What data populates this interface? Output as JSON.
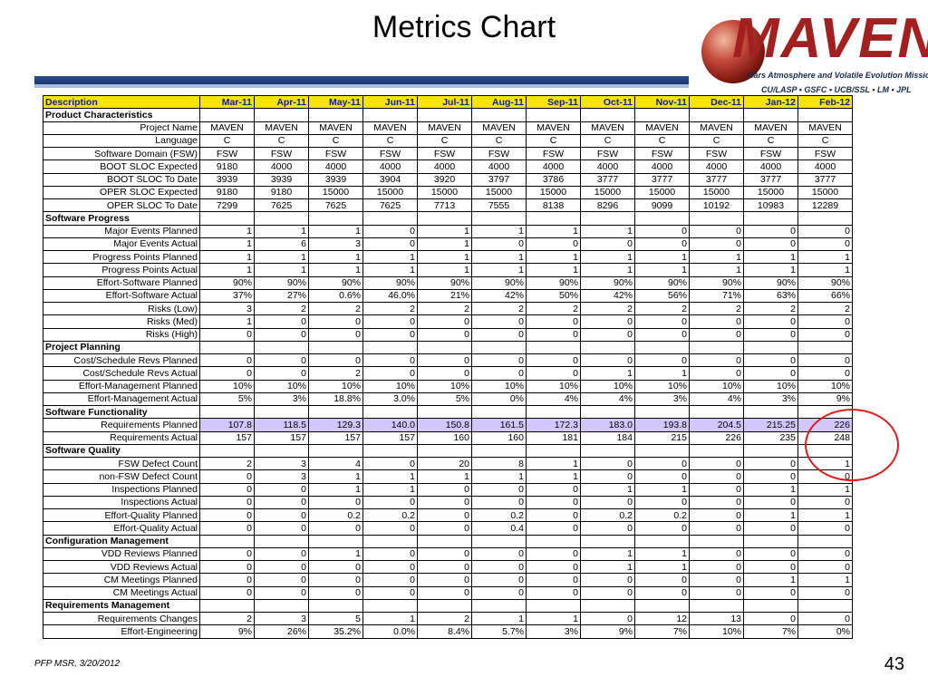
{
  "title": "Metrics Chart",
  "logo": {
    "name": "MAVEN",
    "subtitle": "Mars Atmosphere and Volatile Evolution Mission",
    "partners": "CU/LASP • GSFC • UCB/SSL • LM • JPL"
  },
  "footer": "PFP MSR, 3/20/2012",
  "page_number": "43",
  "colors": {
    "header_bg": "#f6e500",
    "header_text": "#0a1a9e",
    "highlight_row": "#d3c6fb",
    "circle": "#e11a1a"
  },
  "table": {
    "description_header": "Description",
    "months": [
      "Mar-11",
      "Apr-11",
      "May-11",
      "Jun-11",
      "Jul-11",
      "Aug-11",
      "Sep-11",
      "Oct-11",
      "Nov-11",
      "Dec-11",
      "Jan-12",
      "Feb-12"
    ],
    "sections": [
      {
        "name": "Product Characteristics",
        "align": "center",
        "rows": [
          {
            "label": "Project Name",
            "values": [
              "MAVEN",
              "MAVEN",
              "MAVEN",
              "MAVEN",
              "MAVEN",
              "MAVEN",
              "MAVEN",
              "MAVEN",
              "MAVEN",
              "MAVEN",
              "MAVEN",
              "MAVEN"
            ]
          },
          {
            "label": "Language",
            "values": [
              "C",
              "C",
              "C",
              "C",
              "C",
              "C",
              "C",
              "C",
              "C",
              "C",
              "C",
              "C"
            ]
          },
          {
            "label": "Software Domain (FSW)",
            "values": [
              "FSW",
              "FSW",
              "FSW",
              "FSW",
              "FSW",
              "FSW",
              "FSW",
              "FSW",
              "FSW",
              "FSW",
              "FSW",
              "FSW"
            ]
          },
          {
            "label": "BOOT SLOC Expected",
            "values": [
              "9180",
              "4000",
              "4000",
              "4000",
              "4000",
              "4000",
              "4000",
              "4000",
              "4000",
              "4000",
              "4000",
              "4000"
            ]
          },
          {
            "label": "BOOT SLOC To Date",
            "values": [
              "3939",
              "3939",
              "3939",
              "3904",
              "3920",
              "3797",
              "3786",
              "3777",
              "3777",
              "3777",
              "3777",
              "3777"
            ]
          },
          {
            "label": "OPER SLOC Expected",
            "values": [
              "9180",
              "9180",
              "15000",
              "15000",
              "15000",
              "15000",
              "15000",
              "15000",
              "15000",
              "15000",
              "15000",
              "15000"
            ]
          },
          {
            "label": "OPER SLOC To Date",
            "values": [
              "7299",
              "7625",
              "7625",
              "7625",
              "7713",
              "7555",
              "8138",
              "8296",
              "9099",
              "10192",
              "10983",
              "12289"
            ]
          }
        ]
      },
      {
        "name": "Software Progress",
        "align": "right",
        "rows": [
          {
            "label": "Major Events Planned",
            "values": [
              "1",
              "1",
              "1",
              "0",
              "1",
              "1",
              "1",
              "1",
              "0",
              "0",
              "0",
              "0"
            ]
          },
          {
            "label": "Major Events Actual",
            "values": [
              "1",
              "6",
              "3",
              "0",
              "1",
              "0",
              "0",
              "0",
              "0",
              "0",
              "0",
              "0"
            ]
          },
          {
            "label": "Progress Points Planned",
            "values": [
              "1",
              "1",
              "1",
              "1",
              "1",
              "1",
              "1",
              "1",
              "1",
              "1",
              "1",
              "1"
            ]
          },
          {
            "label": "Progress Points Actual",
            "values": [
              "1",
              "1",
              "1",
              "1",
              "1",
              "1",
              "1",
              "1",
              "1",
              "1",
              "1",
              "1"
            ]
          },
          {
            "label": "Effort-Software Planned",
            "values": [
              "90%",
              "90%",
              "90%",
              "90%",
              "90%",
              "90%",
              "90%",
              "90%",
              "90%",
              "90%",
              "90%",
              "90%"
            ]
          },
          {
            "label": "Effort-Software Actual",
            "values": [
              "37%",
              "27%",
              "0.6%",
              "46.0%",
              "21%",
              "42%",
              "50%",
              "42%",
              "56%",
              "71%",
              "63%",
              "66%"
            ]
          },
          {
            "label": "Risks (Low)",
            "values": [
              "3",
              "2",
              "2",
              "2",
              "2",
              "2",
              "2",
              "2",
              "2",
              "2",
              "2",
              "2"
            ]
          },
          {
            "label": "Risks (Med)",
            "values": [
              "1",
              "0",
              "0",
              "0",
              "0",
              "0",
              "0",
              "0",
              "0",
              "0",
              "0",
              "0"
            ]
          },
          {
            "label": "Risks (High)",
            "values": [
              "0",
              "0",
              "0",
              "0",
              "0",
              "0",
              "0",
              "0",
              "0",
              "0",
              "0",
              "0"
            ]
          }
        ]
      },
      {
        "name": "Project Planning",
        "align": "right",
        "rows": [
          {
            "label": "Cost/Schedule Revs Planned",
            "values": [
              "0",
              "0",
              "0",
              "0",
              "0",
              "0",
              "0",
              "0",
              "0",
              "0",
              "0",
              "0"
            ]
          },
          {
            "label": "Cost/Schedule Revs Actual",
            "values": [
              "0",
              "0",
              "2",
              "0",
              "0",
              "0",
              "0",
              "1",
              "1",
              "0",
              "0",
              "0"
            ]
          },
          {
            "label": "Effort-Management Planned",
            "values": [
              "10%",
              "10%",
              "10%",
              "10%",
              "10%",
              "10%",
              "10%",
              "10%",
              "10%",
              "10%",
              "10%",
              "10%"
            ]
          },
          {
            "label": "Effort-Management Actual",
            "values": [
              "5%",
              "3%",
              "18.8%",
              "3.0%",
              "5%",
              "0%",
              "4%",
              "4%",
              "3%",
              "4%",
              "3%",
              "9%"
            ]
          }
        ]
      },
      {
        "name": "Software Functionality",
        "align": "right",
        "rows": [
          {
            "label": "Requirements Planned",
            "values": [
              "107.8",
              "118.5",
              "129.3",
              "140.0",
              "150.8",
              "161.5",
              "172.3",
              "183.0",
              "193.8",
              "204.5",
              "215.25",
              "226"
            ],
            "highlight": true
          },
          {
            "label": "Requirements Actual",
            "values": [
              "157",
              "157",
              "157",
              "157",
              "160",
              "160",
              "181",
              "184",
              "215",
              "226",
              "235",
              "248"
            ]
          }
        ]
      },
      {
        "name": "Software Quality",
        "align": "right",
        "rows": [
          {
            "label": "FSW Defect Count",
            "values": [
              "2",
              "3",
              "4",
              "0",
              "20",
              "8",
              "1",
              "0",
              "0",
              "0",
              "0",
              "1"
            ]
          },
          {
            "label": "non-FSW Defect Count",
            "values": [
              "0",
              "3",
              "1",
              "1",
              "1",
              "1",
              "1",
              "0",
              "0",
              "0",
              "0",
              "0"
            ]
          },
          {
            "label": "Inspections Planned",
            "values": [
              "0",
              "0",
              "1",
              "1",
              "0",
              "0",
              "0",
              "1",
              "1",
              "0",
              "1",
              "1"
            ]
          },
          {
            "label": "Inspections Actual",
            "values": [
              "0",
              "0",
              "0",
              "0",
              "0",
              "0",
              "0",
              "0",
              "0",
              "0",
              "0",
              "0"
            ]
          },
          {
            "label": "Effort-Quality Planned",
            "values": [
              "0",
              "0",
              "0.2",
              "0.2",
              "0",
              "0.2",
              "0",
              "0.2",
              "0.2",
              "0",
              "1",
              "1"
            ]
          },
          {
            "label": "Effort-Quality Actual",
            "values": [
              "0",
              "0",
              "0",
              "0",
              "0",
              "0.4",
              "0",
              "0",
              "0",
              "0",
              "0",
              "0"
            ]
          }
        ]
      },
      {
        "name": "Configuration Management",
        "align": "right",
        "rows": [
          {
            "label": "VDD Reviews Planned",
            "values": [
              "0",
              "0",
              "1",
              "0",
              "0",
              "0",
              "0",
              "1",
              "1",
              "0",
              "0",
              "0"
            ]
          },
          {
            "label": "VDD Reviews Actual",
            "values": [
              "0",
              "0",
              "0",
              "0",
              "0",
              "0",
              "0",
              "1",
              "1",
              "0",
              "0",
              "0"
            ]
          },
          {
            "label": "CM Meetings Planned",
            "values": [
              "0",
              "0",
              "0",
              "0",
              "0",
              "0",
              "0",
              "0",
              "0",
              "0",
              "1",
              "1"
            ]
          },
          {
            "label": "CM Meetings Actual",
            "values": [
              "0",
              "0",
              "0",
              "0",
              "0",
              "0",
              "0",
              "0",
              "0",
              "0",
              "0",
              "0"
            ]
          }
        ]
      },
      {
        "name": "Requirements Management",
        "align": "right",
        "rows": [
          {
            "label": "Requirements Changes",
            "values": [
              "2",
              "3",
              "5",
              "1",
              "2",
              "1",
              "1",
              "0",
              "12",
              "13",
              "0",
              "0"
            ]
          },
          {
            "label": "Effort-Engineering",
            "values": [
              "9%",
              "26%",
              "35.2%",
              "0.0%",
              "8.4%",
              "5.7%",
              "3%",
              "9%",
              "7%",
              "10%",
              "7%",
              "0%"
            ]
          }
        ]
      }
    ]
  }
}
